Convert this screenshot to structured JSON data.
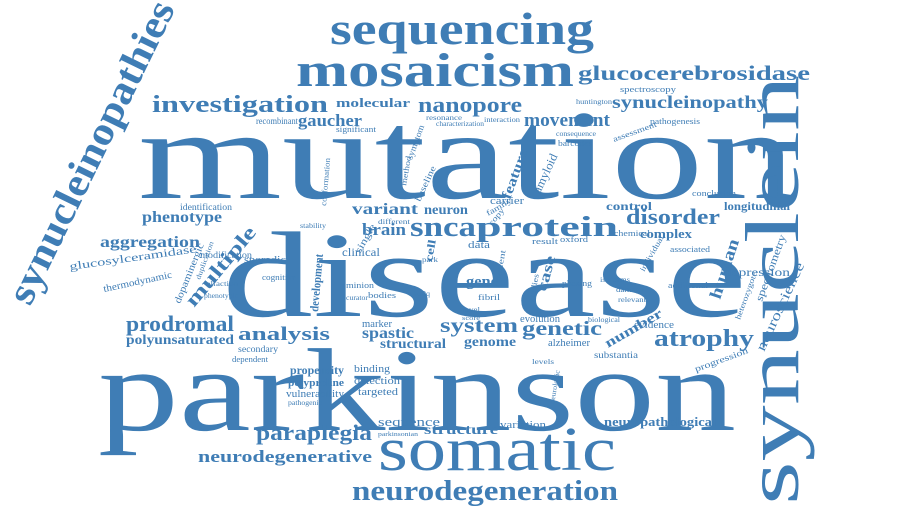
{
  "word_color": "#3f7db5",
  "background": "#ffffff",
  "words": {
    "mutation": "mutation",
    "disease": "disease",
    "parkinson": "parkinson",
    "somatic": "somatic",
    "sequencing": "sequencing",
    "mosaicism": "mosaicism",
    "synucleinopathies": "synucleinopathies",
    "synuclein": "synuclein",
    "glucocerebrosidase": "glucocerebrosidase",
    "investigation": "investigation",
    "nanopore": "nanopore",
    "molecular": "molecular",
    "gaucher": "gaucher",
    "movement": "movement",
    "synucleinopathy": "synucleinopathy",
    "snca": "snca",
    "protein": "protein",
    "variant": "variant",
    "neuron": "neuron",
    "disorder": "disorder",
    "brain": "brain",
    "phenotype": "phenotype",
    "aggregation": "aggregation",
    "multiple": "multiple",
    "glucosylceramidase": "glucosylceramidase",
    "thermodynamic": "thermodynamic",
    "prodromal": "prodromal",
    "polyunsaturated": "polyunsaturated",
    "analysis": "analysis",
    "system": "system",
    "genetic": "genetic",
    "genome": "genome",
    "atrophy": "atrophy",
    "human": "human",
    "neuroscience": "neuroscience",
    "paraplegia": "paraplegia",
    "neurodegenerative": "neurodegenerative",
    "neurodegeneration": "neurodegeneration",
    "structure": "structure",
    "sequence": "sequence",
    "neuropathological": "neuropathological",
    "gene": "gene",
    "case": "case",
    "number": "number",
    "structural": "structural",
    "spastic": "spastic",
    "depression": "depression",
    "spectrometry": "spectrometry",
    "complex": "complex",
    "control": "control",
    "longitudinal": "longitudinal",
    "development": "development",
    "clinical": "clinical",
    "sporadic": "sporadic",
    "dopaminergic": "dopaminergic",
    "modification": "modification",
    "identification": "identification",
    "propensity": "propensity",
    "polyproline": "polyproline",
    "vulnerability": "vulnerability",
    "binding": "binding",
    "detection": "detection",
    "targeted": "targeted",
    "marker": "marker",
    "secondary": "secondary",
    "dependent": "dependent",
    "evolution": "evolution",
    "alzheimer": "alzheimer",
    "substantia": "substantia",
    "evidence": "evidence",
    "progression": "progression",
    "additional": "additional",
    "heterozygote": "heterozygote",
    "individual": "individual",
    "associated": "associated",
    "chemical": "chemical",
    "conclusion": "conclusion",
    "spectroscopy": "spectroscopy",
    "huntington": "huntington",
    "barcodes": "barcodes",
    "consequence": "consequence",
    "assessment": "assessment",
    "pathogenesis": "pathogenesis",
    "recombinant": "recombinant",
    "significant": "significant",
    "characterization": "characterization",
    "resonance": "resonance",
    "interaction": "interaction",
    "feature": "feature",
    "amyloid": "amyloid",
    "oxford": "oxford",
    "patient": "patient",
    "carrier": "carrier",
    "data": "data",
    "result": "result",
    "cell": "cell",
    "single": "single",
    "different": "different",
    "baseline": "baseline",
    "symptom": "symptom",
    "method": "method",
    "conformation": "conformation",
    "bodies": "bodies",
    "minion": "minion",
    "phasing": "phasing",
    "damage": "damage",
    "relevant": "relevant",
    "biological": "biological",
    "fibril": "fibril",
    "novel": "novel",
    "score": "score",
    "levels": "levels",
    "cognitive": "cognitive",
    "olfaction": "olfaction",
    "duplication": "duplication",
    "phenotypic": "phenotypic",
    "curator": "curator",
    "park": "park",
    "h50q": "h50q",
    "family": "family",
    "copy": "copy",
    "stability": "stability",
    "isoforms": "isoforms",
    "pathogenic": "pathogenic",
    "studies": "studies",
    "parkinsonian": "parkinsonian",
    "neurologic": "neurologic"
  }
}
